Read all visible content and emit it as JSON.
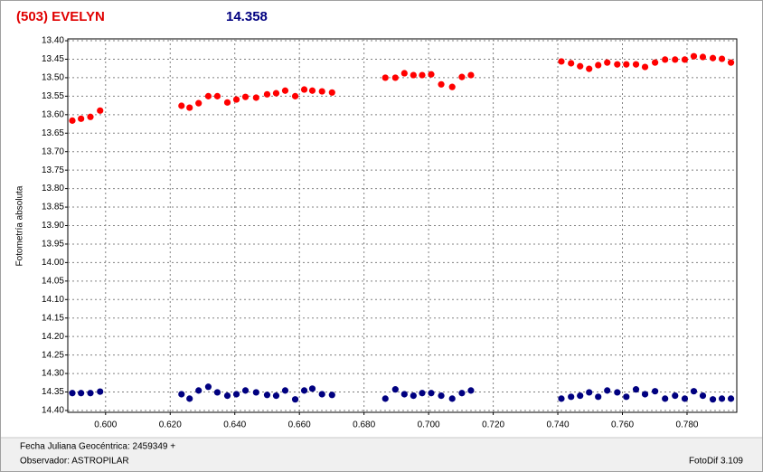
{
  "chart_data": {
    "type": "scatter",
    "title": "(503) EVELYN",
    "subtitle": "14.358",
    "ylabel": "Fotometría absoluta",
    "footer": {
      "xlabel": "Fecha Juliana Geocéntrica: 2459349 +",
      "observer": "Observador: ASTROPILAR",
      "software": "FotoDif 3.109"
    },
    "y_inverted": true,
    "grid": true,
    "xlim": [
      0.5883,
      0.7954
    ],
    "ylim": [
      13.395,
      14.405
    ],
    "xticks": [
      {
        "value": 0.6,
        "label": "0.600"
      },
      {
        "value": 0.62,
        "label": "0.620"
      },
      {
        "value": 0.64,
        "label": "0.640"
      },
      {
        "value": 0.66,
        "label": "0.660"
      },
      {
        "value": 0.68,
        "label": "0.680"
      },
      {
        "value": 0.7,
        "label": "0.700"
      },
      {
        "value": 0.72,
        "label": "0.720"
      },
      {
        "value": 0.74,
        "label": "0.740"
      },
      {
        "value": 0.76,
        "label": "0.760"
      },
      {
        "value": 0.78,
        "label": "0.780"
      }
    ],
    "yticks": [
      {
        "value": 13.4,
        "label": "13.40"
      },
      {
        "value": 13.45,
        "label": "13.45"
      },
      {
        "value": 13.5,
        "label": "13.50"
      },
      {
        "value": 13.55,
        "label": "13.55"
      },
      {
        "value": 13.6,
        "label": "13.60"
      },
      {
        "value": 13.65,
        "label": "13.65"
      },
      {
        "value": 13.7,
        "label": "13.70"
      },
      {
        "value": 13.75,
        "label": "13.75"
      },
      {
        "value": 13.8,
        "label": "13.80"
      },
      {
        "value": 13.85,
        "label": "13.85"
      },
      {
        "value": 13.9,
        "label": "13.90"
      },
      {
        "value": 13.95,
        "label": "13.95"
      },
      {
        "value": 14.0,
        "label": "14.00"
      },
      {
        "value": 14.05,
        "label": "14.05"
      },
      {
        "value": 14.1,
        "label": "14.10"
      },
      {
        "value": 14.15,
        "label": "14.15"
      },
      {
        "value": 14.2,
        "label": "14.20"
      },
      {
        "value": 14.25,
        "label": "14.25"
      },
      {
        "value": 14.3,
        "label": "14.30"
      },
      {
        "value": 14.35,
        "label": "14.35"
      },
      {
        "value": 14.4,
        "label": "14.40"
      }
    ],
    "x": [
      0.5897,
      0.5924,
      0.5953,
      0.5983,
      0.6235,
      0.626,
      0.6288,
      0.6318,
      0.6346,
      0.6377,
      0.6405,
      0.6433,
      0.6466,
      0.65,
      0.6528,
      0.6556,
      0.6587,
      0.6615,
      0.664,
      0.667,
      0.6701,
      0.6866,
      0.6897,
      0.6925,
      0.6953,
      0.698,
      0.7008,
      0.7039,
      0.7073,
      0.7103,
      0.7131,
      0.7411,
      0.7441,
      0.7469,
      0.7497,
      0.7525,
      0.7553,
      0.7584,
      0.7612,
      0.7642,
      0.767,
      0.7701,
      0.7732,
      0.7763,
      0.7793,
      0.7821,
      0.7849,
      0.788,
      0.7908,
      0.7936
    ],
    "series": [
      {
        "color": "#ff0000",
        "values": [
          13.616,
          13.611,
          13.606,
          13.589,
          13.576,
          13.581,
          13.569,
          13.55,
          13.55,
          13.567,
          13.559,
          13.552,
          13.554,
          13.545,
          13.542,
          13.535,
          13.55,
          13.532,
          13.535,
          13.537,
          13.54,
          13.5,
          13.5,
          13.488,
          13.493,
          13.493,
          13.491,
          13.518,
          13.525,
          13.498,
          13.493,
          13.456,
          13.461,
          13.469,
          13.476,
          13.466,
          13.459,
          13.464,
          13.464,
          13.464,
          13.471,
          13.459,
          13.451,
          13.451,
          13.451,
          13.442,
          13.444,
          13.447,
          13.449,
          13.459
        ]
      },
      {
        "color": "#000080",
        "values": [
          14.353,
          14.353,
          14.353,
          14.349,
          14.356,
          14.368,
          14.346,
          14.336,
          14.351,
          14.36,
          14.356,
          14.346,
          14.351,
          14.358,
          14.36,
          14.346,
          14.37,
          14.346,
          14.341,
          14.356,
          14.358,
          14.368,
          14.343,
          14.356,
          14.36,
          14.353,
          14.353,
          14.36,
          14.368,
          14.353,
          14.346,
          14.368,
          14.363,
          14.36,
          14.351,
          14.363,
          14.346,
          14.351,
          14.363,
          14.343,
          14.356,
          14.348,
          14.368,
          14.36,
          14.368,
          14.348,
          14.36,
          14.37,
          14.368,
          14.368
        ]
      }
    ]
  }
}
